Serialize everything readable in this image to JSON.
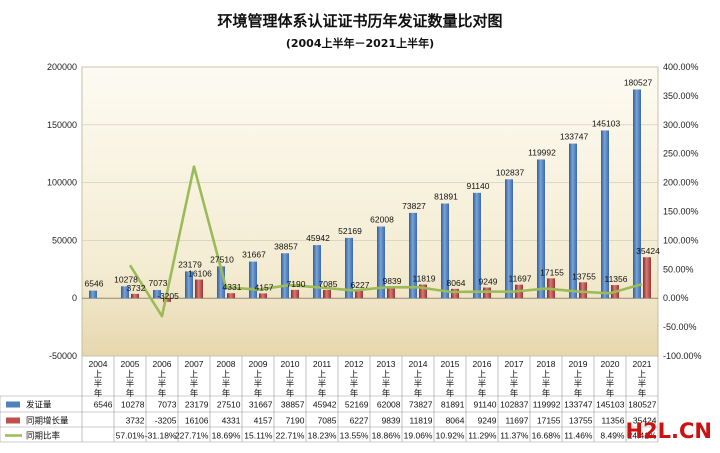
{
  "watermark": {
    "text": "H2L.CN",
    "color": "#cc1111"
  },
  "chart_data": {
    "type": "bar",
    "title": "环境管理体系认证证书历年发证数量比对图",
    "subtitle": "(2004上半年－2021上半年)",
    "years": [
      "2004",
      "2005",
      "2006",
      "2007",
      "2008",
      "2009",
      "2010",
      "2011",
      "2012",
      "2013",
      "2014",
      "2015",
      "2016",
      "2017",
      "2018",
      "2019",
      "2020",
      "2021"
    ],
    "period_label": [
      "上",
      "半",
      "年"
    ],
    "y_left": {
      "min": -50000,
      "max": 200000,
      "step": 50000,
      "ticks": [
        "-50000",
        "0",
        "50000",
        "100000",
        "150000",
        "200000"
      ]
    },
    "y_right": {
      "min": -100,
      "max": 400,
      "step": 50,
      "ticks": [
        "-100.00%",
        "-50.00%",
        "0.00%",
        "50.00%",
        "100.00%",
        "150.00%",
        "200.00%",
        "250.00%",
        "300.00%",
        "350.00%",
        "400.00%"
      ]
    },
    "series": [
      {
        "name": "发证量",
        "kind": "bar",
        "axis": "left",
        "color": "#4f81bd",
        "values": [
          6546,
          10278,
          7073,
          23179,
          27510,
          31667,
          38857,
          45942,
          52169,
          62008,
          73827,
          81891,
          91140,
          102837,
          119992,
          133747,
          145103,
          180527
        ],
        "labels": [
          "6546",
          "10278",
          "7073",
          "23179",
          "27510",
          "31667",
          "38857",
          "45942",
          "52169",
          "62008",
          "73827",
          "81891",
          "91140",
          "102837",
          "119992",
          "133747",
          "145103",
          "180527"
        ]
      },
      {
        "name": "同期增长量",
        "kind": "bar",
        "axis": "left",
        "color": "#c0504d",
        "values": [
          null,
          3732,
          -3205,
          16106,
          4331,
          4157,
          7190,
          7085,
          6227,
          9839,
          11819,
          8064,
          9249,
          11697,
          17155,
          13755,
          11356,
          35424
        ],
        "labels": [
          "",
          "3732",
          "-3205",
          "16106",
          "4331",
          "4157",
          "7190",
          "7085",
          "6227",
          "9839",
          "11819",
          "8064",
          "9249",
          "11697",
          "17155",
          "13755",
          "11356",
          "35424"
        ]
      },
      {
        "name": "同期比率",
        "kind": "line",
        "axis": "right",
        "color": "#9bbb59",
        "values": [
          null,
          57.01,
          -31.18,
          227.71,
          18.69,
          15.11,
          22.71,
          18.23,
          13.55,
          18.86,
          19.06,
          10.92,
          11.29,
          11.37,
          16.68,
          11.46,
          8.49,
          24.41
        ],
        "labels": [
          "",
          "57.01%",
          "-31.18%",
          "227.71%",
          "18.69%",
          "15.11%",
          "22.71%",
          "18.23%",
          "13.55%",
          "18.86%",
          "19.06%",
          "10.92%",
          "11.29%",
          "11.37%",
          "16.68%",
          "11.46%",
          "8.49%",
          "24.41%"
        ]
      }
    ]
  }
}
